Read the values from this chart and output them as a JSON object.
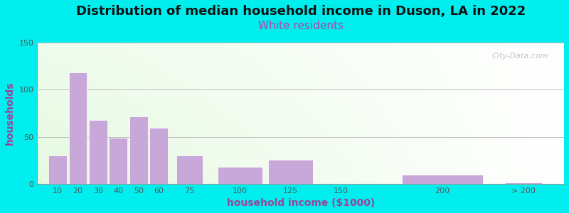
{
  "title": "Distribution of median household income in Duson, LA in 2022",
  "subtitle": "White residents",
  "xlabel": "household income ($1000)",
  "ylabel": "households",
  "title_fontsize": 13,
  "subtitle_fontsize": 11,
  "subtitle_color": "#aa44aa",
  "ylabel_color": "#994499",
  "xlabel_color": "#994499",
  "title_color": "#111111",
  "background_outer": "#00eeee",
  "bar_color": "#c8a8d8",
  "categories": [
    "10",
    "20",
    "30",
    "40",
    "50",
    "60",
    "75",
    "100",
    "125",
    "150",
    "200",
    "> 200"
  ],
  "values": [
    30,
    118,
    68,
    49,
    72,
    60,
    30,
    18,
    26,
    0,
    10,
    2
  ],
  "bar_positions": [
    10,
    20,
    30,
    40,
    50,
    60,
    75,
    100,
    125,
    150,
    200,
    240
  ],
  "bar_widths": [
    9,
    9,
    9,
    9,
    9,
    9,
    13,
    22,
    22,
    22,
    40,
    18
  ],
  "ylim": [
    0,
    150
  ],
  "yticks": [
    0,
    50,
    100,
    150
  ],
  "xtick_labels": [
    "10",
    "20",
    "30",
    "40",
    "50",
    "60",
    "75",
    "100",
    "125",
    "150",
    "200",
    "> 200"
  ],
  "xtick_positions": [
    10,
    20,
    30,
    40,
    50,
    60,
    75,
    100,
    125,
    150,
    200,
    240
  ],
  "xlim": [
    0,
    260
  ],
  "grid_color": "#bbbbbb",
  "watermark": "City-Data.com"
}
